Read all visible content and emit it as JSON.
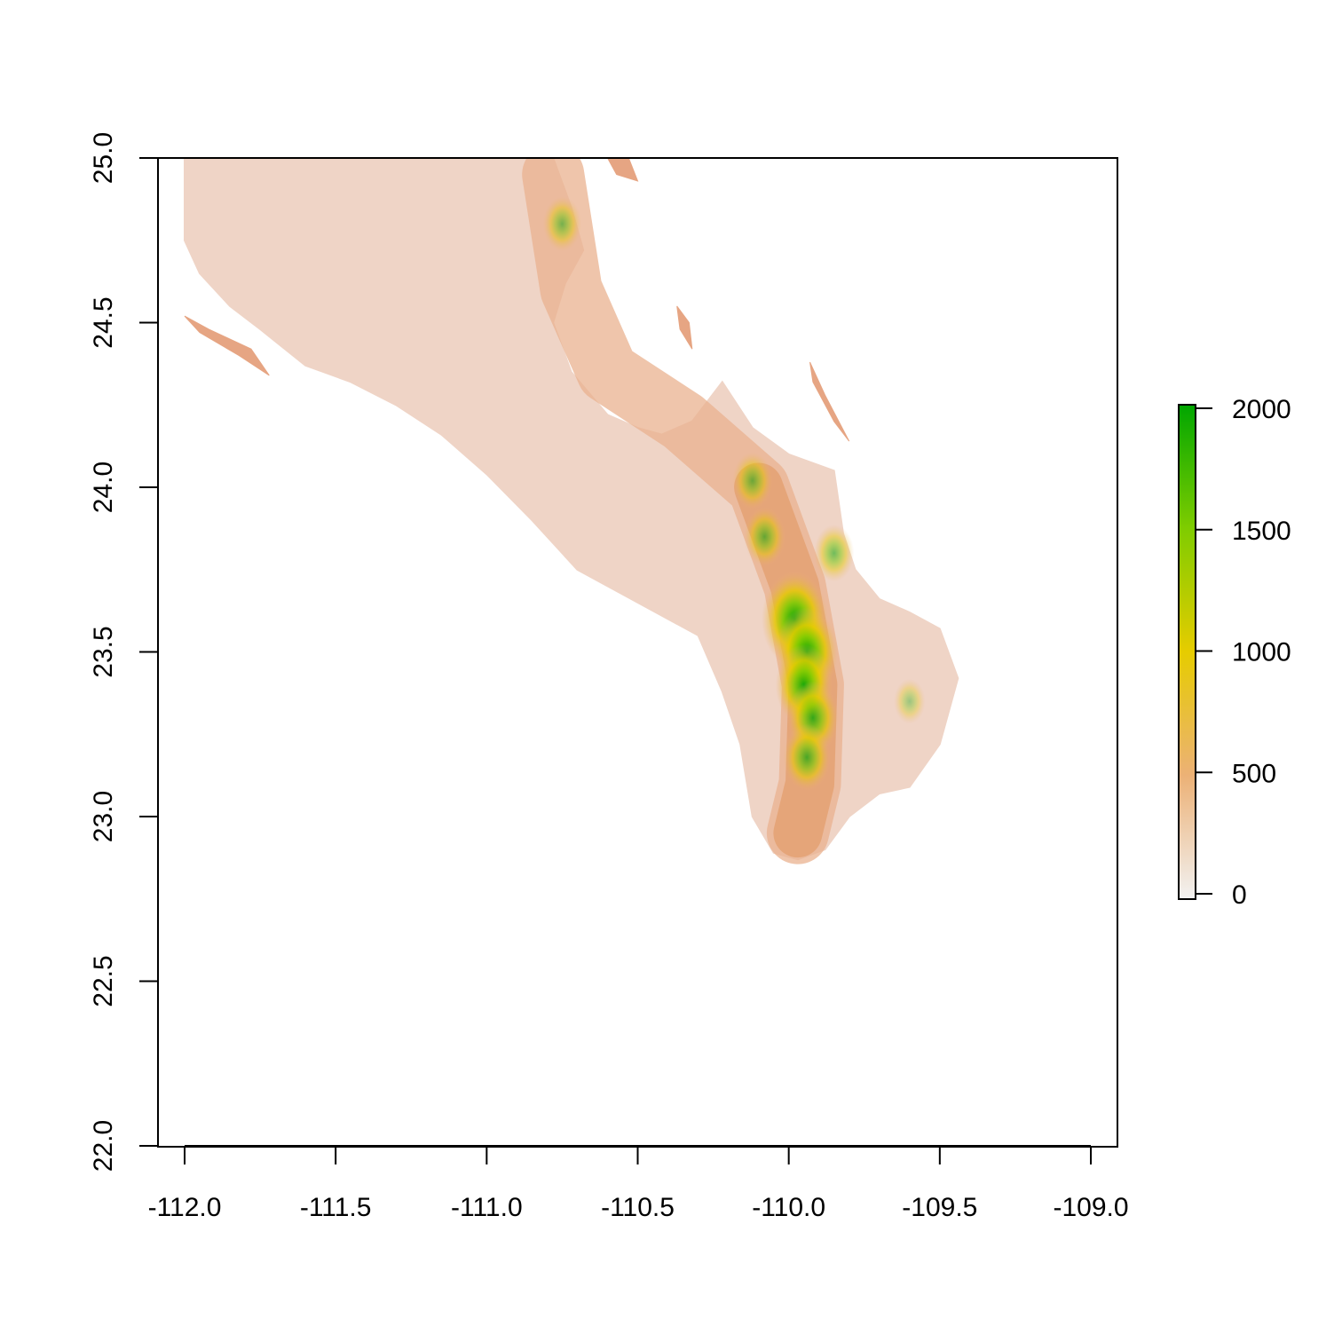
{
  "chart_data": {
    "type": "heatmap",
    "xlim": [
      -112.1,
      -108.9
    ],
    "ylim": [
      22.0,
      25.0
    ],
    "x_ticks": [
      -112.0,
      -111.5,
      -111.0,
      -110.5,
      -110.0,
      -109.5,
      -109.0
    ],
    "x_tick_labels": [
      "-112.0",
      "-111.5",
      "-111.0",
      "-110.5",
      "-110.0",
      "-109.5",
      "-109.0"
    ],
    "y_ticks": [
      22.0,
      22.5,
      23.0,
      23.5,
      24.0,
      24.5,
      25.0
    ],
    "y_tick_labels": [
      "22.0",
      "22.5",
      "23.0",
      "23.5",
      "24.0",
      "24.5",
      "25.0"
    ],
    "legend": {
      "placement": "right",
      "range": [
        0,
        2000
      ],
      "ticks": [
        0,
        500,
        1000,
        1500,
        2000
      ],
      "tick_labels": [
        "0",
        "500",
        "1000",
        "1500",
        "2000"
      ],
      "colors": [
        "#f2f2f2",
        "#ecb176",
        "#e6cc00",
        "#7fcc00",
        "#00a600"
      ]
    },
    "land": {
      "mainland_outline": [
        [
          -112.0,
          25.0
        ],
        [
          -110.78,
          25.0
        ],
        [
          -110.72,
          24.85
        ],
        [
          -110.68,
          24.72
        ],
        [
          -110.74,
          24.62
        ],
        [
          -110.78,
          24.5
        ],
        [
          -110.72,
          24.35
        ],
        [
          -110.6,
          24.22
        ],
        [
          -110.5,
          24.18
        ],
        [
          -110.42,
          24.16
        ],
        [
          -110.32,
          24.2
        ],
        [
          -110.22,
          24.32
        ],
        [
          -110.12,
          24.18
        ],
        [
          -110.0,
          24.1
        ],
        [
          -109.85,
          24.05
        ],
        [
          -109.82,
          23.86
        ],
        [
          -109.78,
          23.75
        ],
        [
          -109.7,
          23.66
        ],
        [
          -109.6,
          23.62
        ],
        [
          -109.5,
          23.57
        ],
        [
          -109.44,
          23.42
        ],
        [
          -109.5,
          23.22
        ],
        [
          -109.6,
          23.09
        ],
        [
          -109.7,
          23.07
        ],
        [
          -109.8,
          23.0
        ],
        [
          -109.88,
          22.9
        ],
        [
          -109.97,
          22.87
        ],
        [
          -110.05,
          22.89
        ],
        [
          -110.12,
          23.0
        ],
        [
          -110.16,
          23.22
        ],
        [
          -110.22,
          23.38
        ],
        [
          -110.3,
          23.55
        ],
        [
          -110.5,
          23.65
        ],
        [
          -110.7,
          23.75
        ],
        [
          -110.85,
          23.9
        ],
        [
          -111.0,
          24.04
        ],
        [
          -111.15,
          24.16
        ],
        [
          -111.3,
          24.25
        ],
        [
          -111.45,
          24.32
        ],
        [
          -111.6,
          24.37
        ],
        [
          -111.75,
          24.48
        ],
        [
          -111.85,
          24.55
        ],
        [
          -111.95,
          24.65
        ],
        [
          -112.0,
          24.75
        ]
      ],
      "islands": [
        [
          [
            -112.0,
            24.52
          ],
          [
            -111.92,
            24.48
          ],
          [
            -111.78,
            24.42
          ],
          [
            -111.72,
            24.34
          ],
          [
            -111.82,
            24.4
          ],
          [
            -111.95,
            24.47
          ]
        ],
        [
          [
            -110.6,
            25.0
          ],
          [
            -110.53,
            25.0
          ],
          [
            -110.5,
            24.93
          ],
          [
            -110.57,
            24.95
          ]
        ],
        [
          [
            -110.37,
            24.55
          ],
          [
            -110.33,
            24.5
          ],
          [
            -110.32,
            24.42
          ],
          [
            -110.36,
            24.48
          ]
        ],
        [
          [
            -109.93,
            24.38
          ],
          [
            -109.88,
            24.28
          ],
          [
            -109.8,
            24.14
          ],
          [
            -109.85,
            24.2
          ],
          [
            -109.92,
            24.32
          ]
        ]
      ],
      "peaks": [
        {
          "x": -110.12,
          "y": 24.02,
          "elev": 900
        },
        {
          "x": -110.08,
          "y": 23.85,
          "elev": 950
        },
        {
          "x": -109.98,
          "y": 23.6,
          "elev": 1850
        },
        {
          "x": -109.94,
          "y": 23.5,
          "elev": 1700
        },
        {
          "x": -109.95,
          "y": 23.4,
          "elev": 1500
        },
        {
          "x": -109.92,
          "y": 23.3,
          "elev": 1300
        },
        {
          "x": -109.94,
          "y": 23.18,
          "elev": 1150
        },
        {
          "x": -109.85,
          "y": 23.8,
          "elev": 900
        },
        {
          "x": -110.75,
          "y": 24.8,
          "elev": 850
        },
        {
          "x": -109.6,
          "y": 23.35,
          "elev": 600
        }
      ]
    }
  }
}
